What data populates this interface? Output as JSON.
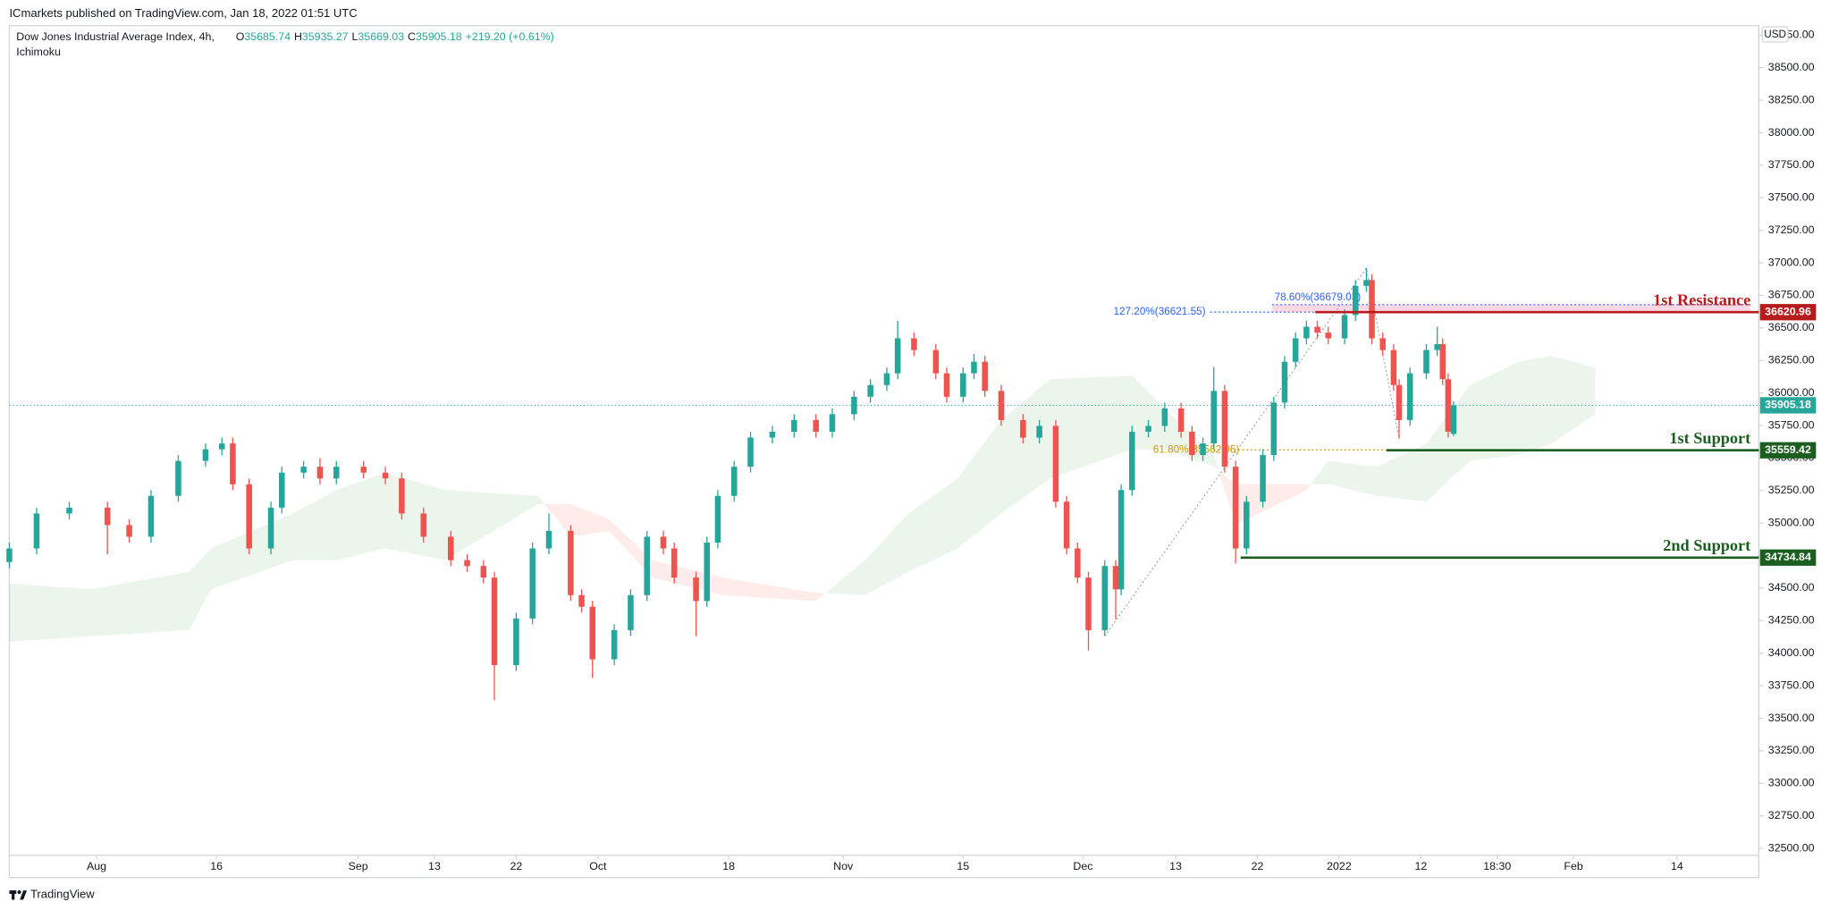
{
  "header": {
    "title": "ICmarkets published on TradingView.com, Jan 18, 2022 01:51 UTC"
  },
  "footer": {
    "brand": "TradingView"
  },
  "chart_data": {
    "type": "candlestick",
    "title": "Dow Jones Industrial Average Index, 4h,",
    "indicator": "Ichimoku",
    "currency": "USD",
    "ohlc_prefixes": [
      "O",
      "H",
      "L",
      "C"
    ],
    "change": "+219.20 (+0.61%)",
    "up_color": "#26a69a",
    "down_color": "#ef5350",
    "candles": {
      "x": [
        0,
        5,
        11,
        18,
        22,
        26,
        31,
        36,
        39,
        41,
        44,
        48,
        50,
        54,
        57,
        60,
        65,
        69,
        72,
        76,
        81,
        84,
        87,
        89,
        93,
        96,
        99,
        103,
        105,
        107,
        111,
        114,
        117,
        120,
        122,
        126,
        128,
        130,
        133,
        136,
        140,
        144,
        148,
        151,
        155,
        158,
        161,
        163,
        166,
        170,
        172,
        175,
        177,
        179,
        182,
        186,
        189,
        192,
        194,
        196,
        198,
        201,
        203,
        204,
        206,
        209,
        212,
        215,
        217,
        219,
        221,
        223,
        225,
        227,
        230,
        232,
        234,
        236,
        238,
        240,
        242,
        245,
        247,
        249,
        250,
        252,
        254,
        255,
        257,
        260,
        262,
        263,
        264,
        265
      ],
      "open": [
        34700,
        34805,
        35074,
        35119,
        34985,
        34895,
        35209,
        35478,
        35567,
        35612,
        35298,
        34805,
        35119,
        35388,
        35433,
        35343,
        35433,
        35388,
        35343,
        35074,
        34895,
        34715,
        34670,
        34581,
        33908,
        34267,
        34805,
        34940,
        34446,
        34357,
        33953,
        34177,
        34446,
        34895,
        34805,
        34581,
        34401,
        34850,
        35209,
        35433,
        35657,
        35702,
        35792,
        35702,
        35837,
        35971,
        36061,
        36151,
        36420,
        36330,
        36151,
        35971,
        36151,
        36240,
        36016,
        35792,
        35657,
        35747,
        35164,
        34805,
        34581,
        34177,
        34670,
        34491,
        35254,
        35702,
        35747,
        35881,
        35702,
        35523,
        35612,
        36016,
        35433,
        34805,
        35164,
        35523,
        35926,
        36240,
        36420,
        36509,
        36464,
        36420,
        36599,
        36823,
        36868,
        36420,
        36330,
        36061,
        35792,
        36151,
        36330,
        36375,
        36106,
        35685.74
      ],
      "high": [
        34850,
        35119,
        35164,
        35164,
        35030,
        35254,
        35523,
        35612,
        35657,
        35657,
        35343,
        35164,
        35433,
        35478,
        35500,
        35478,
        35478,
        35433,
        35388,
        35119,
        34940,
        34760,
        34715,
        34626,
        34312,
        34850,
        35074,
        34985,
        34491,
        34402,
        34222,
        34491,
        34940,
        34940,
        34850,
        34626,
        34895,
        35254,
        35478,
        35702,
        35747,
        35837,
        35837,
        35882,
        36016,
        36106,
        36196,
        36554,
        36465,
        36375,
        36196,
        36196,
        36300,
        36285,
        36061,
        35837,
        35792,
        35792,
        35209,
        34850,
        34626,
        34715,
        34715,
        35299,
        35747,
        35792,
        35926,
        35926,
        35747,
        35657,
        36200,
        36061,
        35478,
        35209,
        35568,
        35971,
        36285,
        36465,
        36554,
        36554,
        36509,
        36644,
        36868,
        36960,
        36913,
        36465,
        36375,
        36106,
        36196,
        36375,
        36510,
        36420,
        36151,
        35935.27
      ],
      "low": [
        34655,
        34760,
        35029,
        34760,
        34850,
        34850,
        35164,
        35433,
        35522,
        35253,
        34760,
        34760,
        35074,
        35343,
        35298,
        35298,
        35343,
        35298,
        35029,
        34850,
        34670,
        34625,
        34536,
        33639,
        33863,
        34222,
        34760,
        34401,
        34312,
        33810,
        33908,
        34132,
        34401,
        34760,
        34536,
        34130,
        34356,
        34805,
        35164,
        35388,
        35612,
        35657,
        35657,
        35657,
        35792,
        35926,
        36016,
        36106,
        36285,
        36106,
        35926,
        35926,
        36106,
        35971,
        35747,
        35612,
        35612,
        35119,
        34760,
        34536,
        34020,
        34132,
        34260,
        34446,
        35209,
        35657,
        35702,
        35657,
        35478,
        35478,
        35567,
        35388,
        34690,
        34760,
        35119,
        35478,
        35881,
        36195,
        36375,
        36419,
        36375,
        36375,
        36554,
        36778,
        36375,
        36285,
        36016,
        35650,
        35747,
        36106,
        36285,
        36061,
        35657,
        35669.03
      ],
      "close": [
        34805,
        35074,
        35119,
        34985,
        34895,
        35209,
        35478,
        35567,
        35612,
        35298,
        34805,
        35119,
        35388,
        35433,
        35343,
        35433,
        35388,
        35343,
        35074,
        34895,
        34715,
        34670,
        34581,
        33908,
        34267,
        34805,
        34940,
        34446,
        34357,
        33953,
        34177,
        34446,
        34895,
        34805,
        34581,
        34401,
        34850,
        35209,
        35433,
        35657,
        35702,
        35792,
        35702,
        35837,
        35971,
        36061,
        36151,
        36420,
        36330,
        36151,
        35971,
        36151,
        36240,
        36016,
        35792,
        35657,
        35747,
        35164,
        34805,
        34581,
        34177,
        34670,
        34491,
        35254,
        35702,
        35747,
        35881,
        35702,
        35523,
        35612,
        36016,
        35433,
        34805,
        35164,
        35523,
        35926,
        36240,
        36420,
        36509,
        36464,
        36420,
        36599,
        36823,
        36868,
        36420,
        36330,
        36061,
        35792,
        36151,
        36330,
        36375,
        36106,
        35702,
        35905.18
      ]
    },
    "cloud": {
      "x": [
        0,
        15,
        33,
        37,
        52,
        60,
        69,
        80,
        97,
        103,
        110,
        118,
        131,
        148,
        157,
        165,
        174,
        182,
        191,
        206,
        212,
        221,
        225,
        238,
        242,
        251,
        260,
        268,
        277,
        283,
        291
      ],
      "span_a": [
        34536,
        34491,
        34626,
        34805,
        35074,
        35254,
        35388,
        35254,
        35209,
        34895,
        34940,
        34581,
        34446,
        34401,
        34715,
        35074,
        35343,
        35792,
        36106,
        36133,
        35881,
        35523,
        34985,
        35254,
        35478,
        35433,
        35612,
        36061,
        36240,
        36285,
        36195
      ],
      "span_b": [
        34088,
        34132,
        34177,
        34491,
        34715,
        34715,
        34805,
        34715,
        35146,
        35146,
        35030,
        34715,
        34581,
        34464,
        34446,
        34626,
        34805,
        35074,
        35343,
        35567,
        35567,
        35433,
        35298,
        35298,
        35298,
        35209,
        35164,
        35478,
        35523,
        35612,
        35837
      ],
      "up_color": "#43a047",
      "down_color": "#f44336"
    },
    "levels": [
      {
        "label": "1st Resistance",
        "value": 36620.96,
        "color": "#b71c1c"
      },
      {
        "label": "1st Support",
        "value": 35559.42,
        "color": "#1b5e20"
      },
      {
        "label": "2nd Support",
        "value": 34734.84,
        "color": "#1b5e20"
      }
    ],
    "fib_levels": [
      {
        "label": "127.20%(36621.55)",
        "value": 36621.55,
        "color": "#2962ff"
      },
      {
        "label": "78.60%(36679.03)",
        "value": 36679.03,
        "color": "#2962ff"
      },
      {
        "label": "61.80%(35562.95)",
        "value": 35562.95,
        "color": "#c99a06"
      }
    ],
    "last_price_color": "#26a69a",
    "xlim": [
      0,
      321
    ],
    "xticks": [
      {
        "value": 16,
        "label": "Aug"
      },
      {
        "value": 38,
        "label": "16"
      },
      {
        "value": 64,
        "label": "Sep"
      },
      {
        "value": 78,
        "label": "13"
      },
      {
        "value": 93,
        "label": "22"
      },
      {
        "value": 108,
        "label": "Oct"
      },
      {
        "value": 132,
        "label": "18"
      },
      {
        "value": 153,
        "label": "Nov"
      },
      {
        "value": 175,
        "label": "15"
      },
      {
        "value": 197,
        "label": "Dec"
      },
      {
        "value": 214,
        "label": "13"
      },
      {
        "value": 229,
        "label": "22"
      },
      {
        "value": 244,
        "label": "2022"
      },
      {
        "value": 259,
        "label": "12"
      },
      {
        "value": 273,
        "label": "18:30"
      },
      {
        "value": 287,
        "label": "Feb"
      },
      {
        "value": 306,
        "label": "14"
      }
    ],
    "ylim": [
      32446,
      38823
    ],
    "yticks": [
      {
        "value": 32500,
        "label": "32500.00"
      },
      {
        "value": 32750,
        "label": "32750.00"
      },
      {
        "value": 33000,
        "label": "33000.00"
      },
      {
        "value": 33250,
        "label": "33250.00"
      },
      {
        "value": 33500,
        "label": "33500.00"
      },
      {
        "value": 33750,
        "label": "33750.00"
      },
      {
        "value": 34000,
        "label": "34000.00"
      },
      {
        "value": 34250,
        "label": "34250.00"
      },
      {
        "value": 34500,
        "label": "34500.00"
      },
      {
        "value": 34750,
        "label": "34750.00"
      },
      {
        "value": 35000,
        "label": "35000.00"
      },
      {
        "value": 35250,
        "label": "35250.00"
      },
      {
        "value": 35500,
        "label": "35500.00"
      },
      {
        "value": 35750,
        "label": "35750.00"
      },
      {
        "value": 36000,
        "label": "36000.00"
      },
      {
        "value": 36250,
        "label": "36250.00"
      },
      {
        "value": 36500,
        "label": "36500.00"
      },
      {
        "value": 36750,
        "label": "36750.00"
      },
      {
        "value": 37000,
        "label": "37000.00"
      },
      {
        "value": 37250,
        "label": "37250.00"
      },
      {
        "value": 37500,
        "label": "37500.00"
      },
      {
        "value": 37750,
        "label": "37750.00"
      },
      {
        "value": 38000,
        "label": "38000.00"
      },
      {
        "value": 38250,
        "label": "38250.00"
      },
      {
        "value": 38500,
        "label": "38500.00"
      },
      {
        "value": 38750,
        "label": "38750.00"
      }
    ],
    "grid": false
  }
}
